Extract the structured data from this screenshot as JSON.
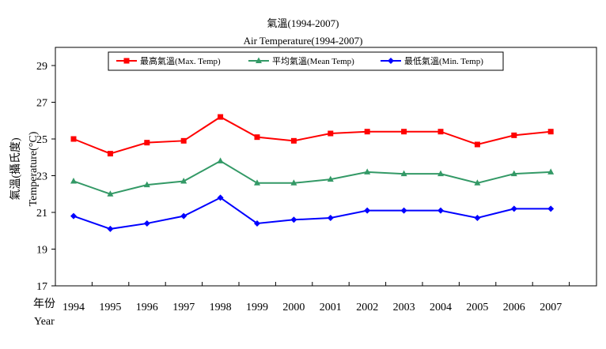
{
  "chart_data": {
    "type": "line",
    "title": "氣溫(1994-2007)",
    "subtitle": "Air Temperature(1994-2007)",
    "ylabel_zh": "氣溫(攝氏度)",
    "ylabel_en": "Temperature(°C)",
    "xlabel_zh": "年份",
    "xlabel_en": "Year",
    "categories": [
      "1994",
      "1995",
      "1996",
      "1997",
      "1998",
      "1999",
      "2000",
      "2001",
      "2002",
      "2003",
      "2004",
      "2005",
      "2006",
      "2007"
    ],
    "ylim": [
      17,
      29
    ],
    "yticks": [
      17,
      19,
      21,
      23,
      25,
      27,
      29
    ],
    "grid": false,
    "legend_position": "top",
    "series": [
      {
        "name": "最高氣溫(Max. Temp)",
        "color": "#ff0000",
        "marker": "square",
        "values": [
          25.0,
          24.2,
          24.8,
          24.9,
          26.2,
          25.1,
          24.9,
          25.3,
          25.4,
          25.4,
          25.4,
          24.7,
          25.2,
          25.4
        ]
      },
      {
        "name": "平均氣溫(Mean Temp)",
        "color": "#339966",
        "marker": "triangle",
        "values": [
          22.7,
          22.0,
          22.5,
          22.7,
          23.8,
          22.6,
          22.6,
          22.8,
          23.2,
          23.1,
          23.1,
          22.6,
          23.1,
          23.2
        ]
      },
      {
        "name": "最低氣溫(Min. Temp)",
        "color": "#0000ff",
        "marker": "diamond",
        "values": [
          20.8,
          20.1,
          20.4,
          20.8,
          21.8,
          20.4,
          20.6,
          20.7,
          21.1,
          21.1,
          21.1,
          20.7,
          21.2,
          21.2
        ]
      }
    ]
  }
}
